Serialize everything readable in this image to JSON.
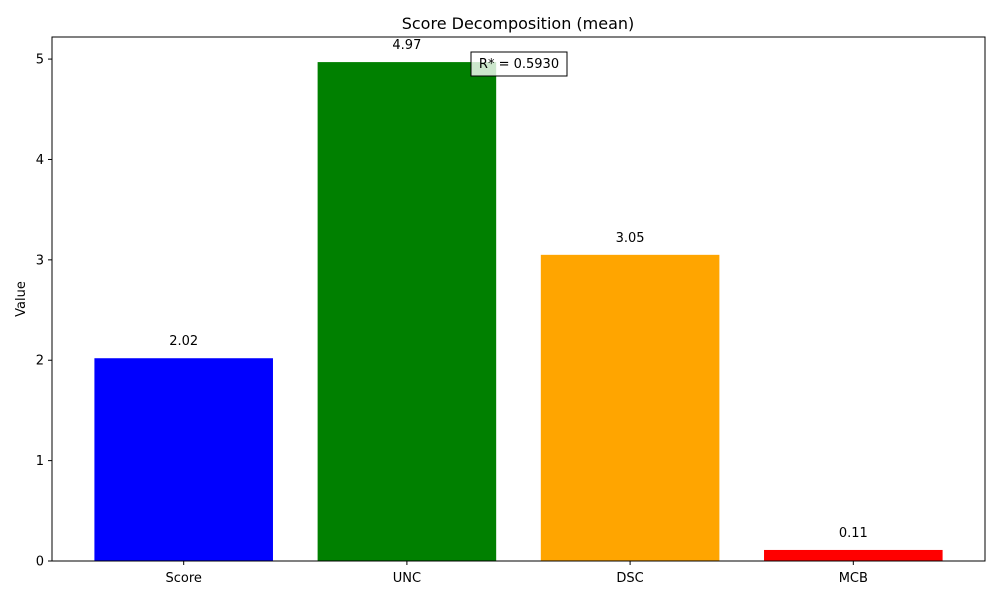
{
  "chart_data": {
    "type": "bar",
    "title": "Score Decomposition (mean)",
    "xlabel": "",
    "ylabel": "Value",
    "categories": [
      "Score",
      "UNC",
      "DSC",
      "MCB"
    ],
    "values": [
      2.02,
      4.97,
      3.05,
      0.11
    ],
    "value_labels": [
      "2.02",
      "4.97",
      "3.05",
      "0.11"
    ],
    "colors": [
      "#0000ff",
      "#008000",
      "#ffa500",
      "#ff0000"
    ],
    "ylim": [
      0,
      5.22
    ],
    "yticks": [
      0,
      1,
      2,
      3,
      4,
      5
    ],
    "ytick_labels": [
      "0",
      "1",
      "2",
      "3",
      "4",
      "5"
    ],
    "grid": false,
    "annotation": "R* = 0.5930"
  }
}
